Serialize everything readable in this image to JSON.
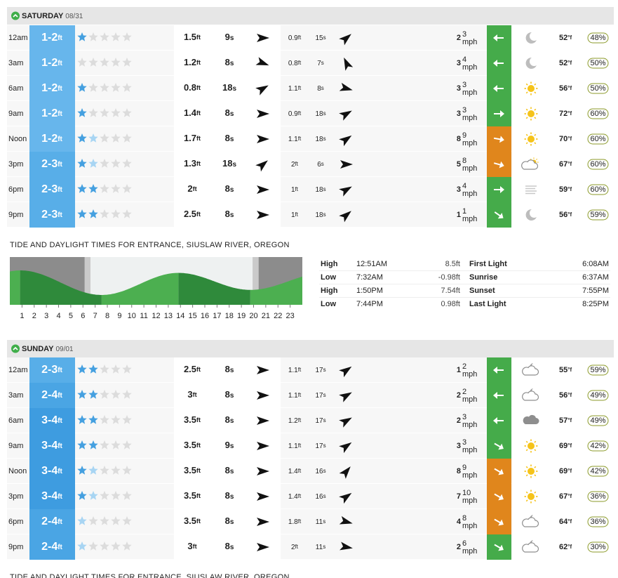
{
  "units": {
    "ft": "ft",
    "s": "s",
    "mph": "mph",
    "deg": "°f"
  },
  "days": [
    {
      "name": "SATURDAY",
      "date": "08/31",
      "tide_title": "TIDE AND DAYLIGHT TIMES FOR ENTRANCE, SIUSLAW RIVER, OREGON",
      "rows": [
        {
          "time": "12am",
          "surf": "1-2",
          "surf_color": "#67b6ec",
          "stars_solid": 1,
          "stars_faint": 0,
          "primary_height": "1.5",
          "primary_period": "9",
          "primary_dir": 0,
          "secondary_height": "0.9",
          "secondary_period": "15",
          "secondary_dir": -40,
          "wind": "2",
          "gust": "3",
          "wind_dir": 180,
          "wind_color": "#45ab4a",
          "weather": "moon",
          "temp": "52",
          "humidity": "48%"
        },
        {
          "time": "3am",
          "surf": "1-2",
          "surf_color": "#67b6ec",
          "stars_solid": 0,
          "stars_faint": 0,
          "primary_height": "1.2",
          "primary_period": "8",
          "primary_dir": 20,
          "secondary_height": "0.8",
          "secondary_period": "7",
          "secondary_dir": -115,
          "wind": "3",
          "gust": "4",
          "wind_dir": 180,
          "wind_color": "#45ab4a",
          "weather": "moon",
          "temp": "52",
          "humidity": "50%"
        },
        {
          "time": "6am",
          "surf": "1-2",
          "surf_color": "#67b6ec",
          "stars_solid": 1,
          "stars_faint": 0,
          "primary_height": "0.8",
          "primary_period": "18",
          "primary_dir": -30,
          "secondary_height": "1.1",
          "secondary_period": "8",
          "secondary_dir": 15,
          "wind": "3",
          "gust": "3",
          "wind_dir": 180,
          "wind_color": "#45ab4a",
          "weather": "sun",
          "temp": "56",
          "humidity": "50%"
        },
        {
          "time": "9am",
          "surf": "1-2",
          "surf_color": "#67b6ec",
          "stars_solid": 1,
          "stars_faint": 0,
          "primary_height": "1.4",
          "primary_period": "8",
          "primary_dir": 0,
          "secondary_height": "0.9",
          "secondary_period": "18",
          "secondary_dir": -30,
          "wind": "3",
          "gust": "3",
          "wind_dir": 0,
          "wind_color": "#45ab4a",
          "weather": "sun",
          "temp": "72",
          "humidity": "60%"
        },
        {
          "time": "Noon",
          "surf": "1-2",
          "surf_color": "#67b6ec",
          "stars_solid": 1,
          "stars_faint": 1,
          "primary_height": "1.7",
          "primary_period": "8",
          "primary_dir": 0,
          "secondary_height": "1.1",
          "secondary_period": "18",
          "secondary_dir": -35,
          "wind": "8",
          "gust": "9",
          "wind_dir": 10,
          "wind_color": "#e0861c",
          "weather": "sun",
          "temp": "70",
          "humidity": "60%"
        },
        {
          "time": "3pm",
          "surf": "2-3",
          "surf_color": "#58aee8",
          "stars_solid": 1,
          "stars_faint": 1,
          "primary_height": "1.3",
          "primary_period": "18",
          "primary_dir": -40,
          "secondary_height": "2",
          "secondary_period": "6",
          "secondary_dir": 0,
          "wind": "5",
          "gust": "8",
          "wind_dir": 15,
          "wind_color": "#e0861c",
          "weather": "partly",
          "temp": "67",
          "humidity": "60%"
        },
        {
          "time": "6pm",
          "surf": "2-3",
          "surf_color": "#58aee8",
          "stars_solid": 2,
          "stars_faint": 0,
          "primary_height": "2",
          "primary_period": "8",
          "primary_dir": 0,
          "secondary_height": "1",
          "secondary_period": "18",
          "secondary_dir": -30,
          "wind": "3",
          "gust": "4",
          "wind_dir": 0,
          "wind_color": "#45ab4a",
          "weather": "fog",
          "temp": "59",
          "humidity": "60%"
        },
        {
          "time": "9pm",
          "surf": "2-3",
          "surf_color": "#58aee8",
          "stars_solid": 2,
          "stars_faint": 0,
          "primary_height": "2.5",
          "primary_period": "8",
          "primary_dir": 0,
          "secondary_height": "1",
          "secondary_period": "18",
          "secondary_dir": -40,
          "wind": "1",
          "gust": "1",
          "wind_dir": 35,
          "wind_color": "#45ab4a",
          "weather": "moon",
          "temp": "56",
          "humidity": "59%"
        }
      ],
      "tides": [
        {
          "type": "High",
          "time": "12:51AM",
          "height": 8.5
        },
        {
          "type": "Low",
          "time": "7:32AM",
          "height": -0.98
        },
        {
          "type": "High",
          "time": "1:50PM",
          "height": 7.54
        },
        {
          "type": "Low",
          "time": "7:44PM",
          "height": 0.98
        }
      ],
      "light": [
        {
          "label": "First Light",
          "time": "6:08AM"
        },
        {
          "label": "Sunrise",
          "time": "6:37AM"
        },
        {
          "label": "Sunset",
          "time": "7:55PM"
        },
        {
          "label": "Last Light",
          "time": "8:25PM"
        }
      ],
      "hours": [
        1,
        2,
        3,
        4,
        5,
        6,
        7,
        8,
        9,
        10,
        11,
        12,
        13,
        14,
        15,
        16,
        17,
        18,
        19,
        20,
        21,
        22,
        23
      ]
    },
    {
      "name": "SUNDAY",
      "date": "09/01",
      "tide_title": "TIDE AND DAYLIGHT TIMES FOR ENTRANCE, SIUSLAW RIVER, OREGON",
      "rows": [
        {
          "time": "12am",
          "surf": "2-3",
          "surf_color": "#58aee8",
          "stars_solid": 2,
          "stars_faint": 0,
          "primary_height": "2.5",
          "primary_period": "8",
          "primary_dir": 0,
          "secondary_height": "1.1",
          "secondary_period": "17",
          "secondary_dir": -35,
          "wind": "1",
          "gust": "2",
          "wind_dir": 180,
          "wind_color": "#45ab4a",
          "weather": "cloud-moon",
          "temp": "55",
          "humidity": "59%"
        },
        {
          "time": "3am",
          "surf": "2-4",
          "surf_color": "#4aa5e4",
          "stars_solid": 2,
          "stars_faint": 0,
          "primary_height": "3",
          "primary_period": "8",
          "primary_dir": 0,
          "secondary_height": "1.1",
          "secondary_period": "17",
          "secondary_dir": -30,
          "wind": "2",
          "gust": "2",
          "wind_dir": 180,
          "wind_color": "#45ab4a",
          "weather": "cloud-moon",
          "temp": "56",
          "humidity": "49%"
        },
        {
          "time": "6am",
          "surf": "3-4",
          "surf_color": "#3e9ce0",
          "stars_solid": 2,
          "stars_faint": 0,
          "primary_height": "3.5",
          "primary_period": "8",
          "primary_dir": 0,
          "secondary_height": "1.2",
          "secondary_period": "17",
          "secondary_dir": -30,
          "wind": "2",
          "gust": "3",
          "wind_dir": 180,
          "wind_color": "#45ab4a",
          "weather": "cloud",
          "temp": "57",
          "humidity": "49%"
        },
        {
          "time": "9am",
          "surf": "3-4",
          "surf_color": "#3e9ce0",
          "stars_solid": 2,
          "stars_faint": 0,
          "primary_height": "3.5",
          "primary_period": "9",
          "primary_dir": 0,
          "secondary_height": "1.1",
          "secondary_period": "17",
          "secondary_dir": -35,
          "wind": "3",
          "gust": "3",
          "wind_dir": 30,
          "wind_color": "#45ab4a",
          "weather": "sun",
          "temp": "69",
          "humidity": "42%"
        },
        {
          "time": "Noon",
          "surf": "3-4",
          "surf_color": "#3e9ce0",
          "stars_solid": 1,
          "stars_faint": 1,
          "primary_height": "3.5",
          "primary_period": "8",
          "primary_dir": 0,
          "secondary_height": "1.4",
          "secondary_period": "16",
          "secondary_dir": -50,
          "wind": "8",
          "gust": "9",
          "wind_dir": 30,
          "wind_color": "#e0861c",
          "weather": "sun",
          "temp": "69",
          "humidity": "42%"
        },
        {
          "time": "3pm",
          "surf": "3-4",
          "surf_color": "#3e9ce0",
          "stars_solid": 1,
          "stars_faint": 1,
          "primary_height": "3.5",
          "primary_period": "8",
          "primary_dir": 0,
          "secondary_height": "1.4",
          "secondary_period": "16",
          "secondary_dir": -35,
          "wind": "7",
          "gust": "10",
          "wind_dir": 30,
          "wind_color": "#e0861c",
          "weather": "sun",
          "temp": "67",
          "humidity": "36%"
        },
        {
          "time": "6pm",
          "surf": "2-4",
          "surf_color": "#4aa5e4",
          "stars_solid": 0,
          "stars_faint": 1,
          "primary_height": "3.5",
          "primary_period": "8",
          "primary_dir": 0,
          "secondary_height": "1.8",
          "secondary_period": "11",
          "secondary_dir": 15,
          "wind": "4",
          "gust": "8",
          "wind_dir": 30,
          "wind_color": "#e0861c",
          "weather": "cloud-moon",
          "temp": "64",
          "humidity": "36%"
        },
        {
          "time": "9pm",
          "surf": "2-4",
          "surf_color": "#4aa5e4",
          "stars_solid": 0,
          "stars_faint": 1,
          "primary_height": "3",
          "primary_period": "8",
          "primary_dir": 0,
          "secondary_height": "2",
          "secondary_period": "11",
          "secondary_dir": 10,
          "wind": "2",
          "gust": "6",
          "wind_dir": 30,
          "wind_color": "#45ab4a",
          "weather": "cloud-moon",
          "temp": "62",
          "humidity": "30%"
        }
      ]
    }
  ]
}
